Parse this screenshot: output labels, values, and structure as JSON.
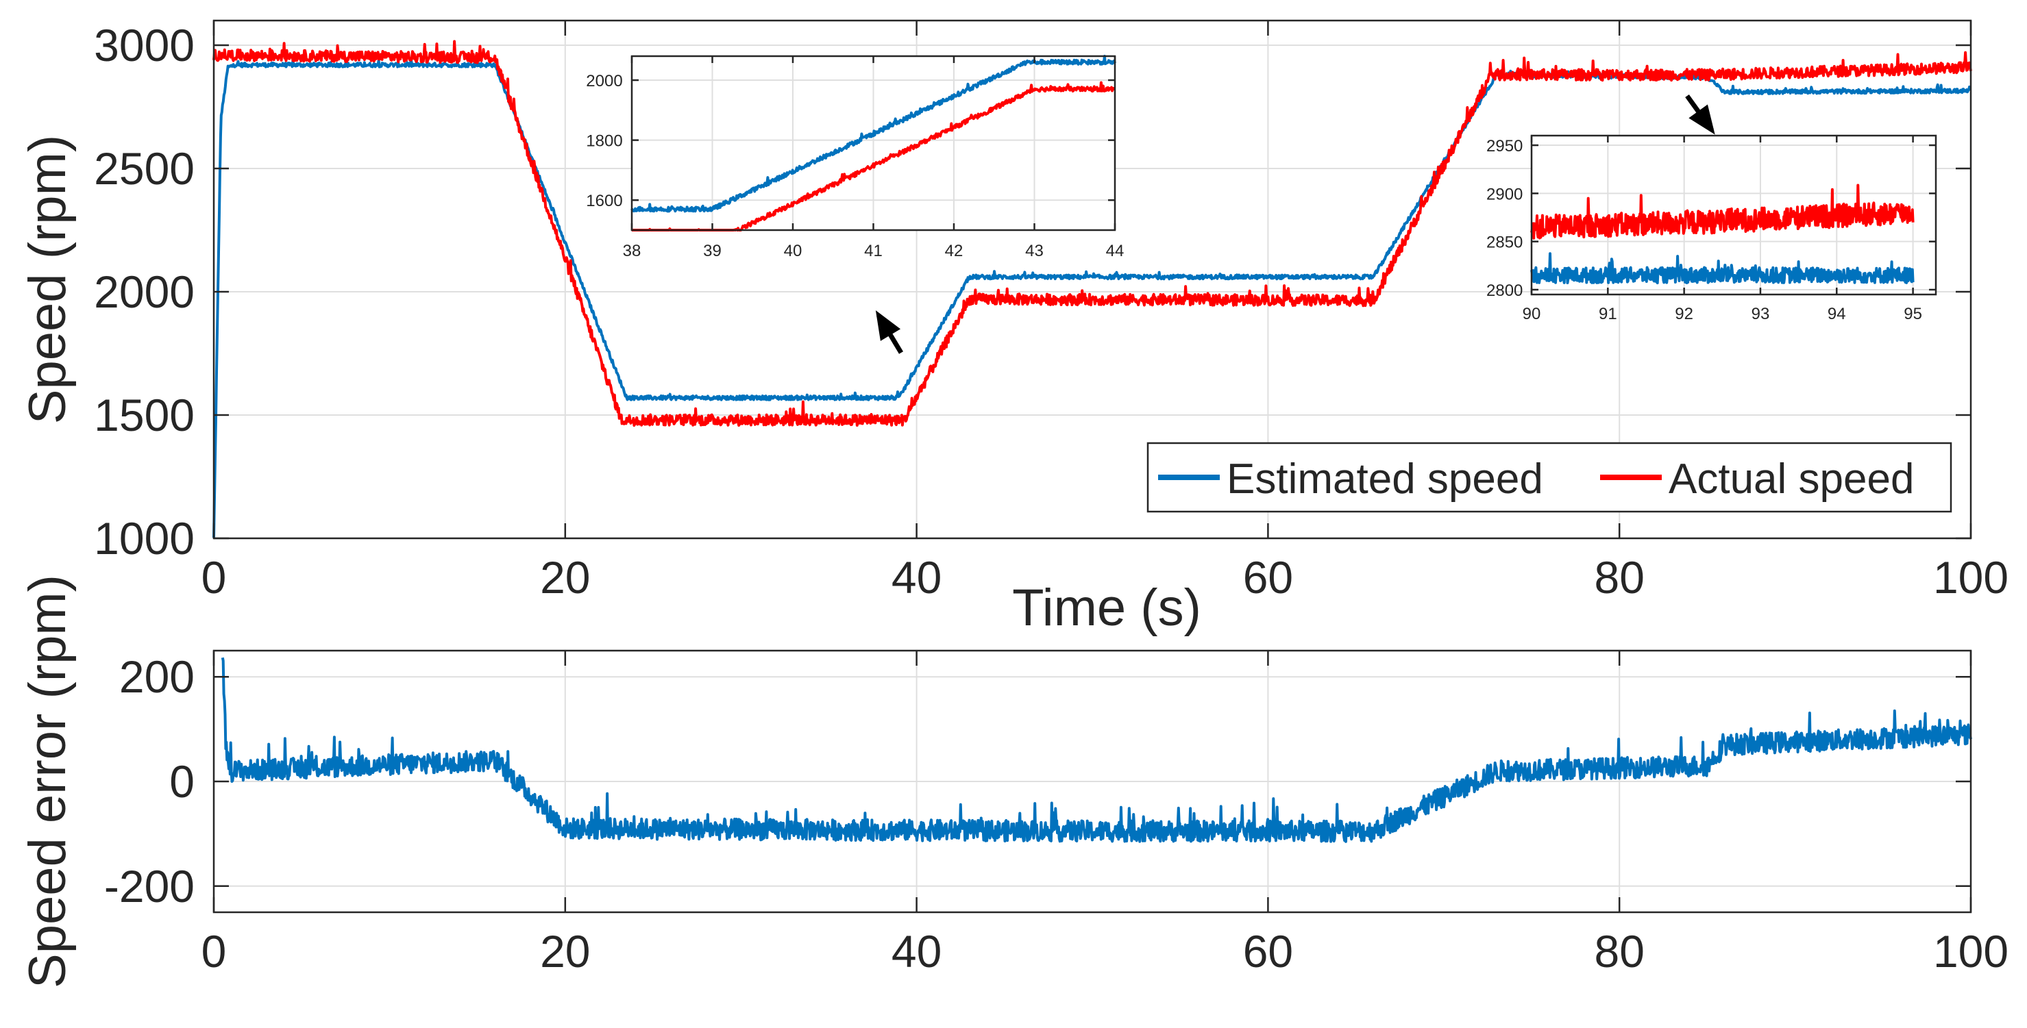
{
  "chart_data": [
    {
      "type": "line",
      "id": "speed",
      "xlabel": "Time (s)",
      "ylabel": "Speed (rpm)",
      "xlim": [
        0,
        100
      ],
      "ylim": [
        1000,
        3100
      ],
      "xticks": [
        0,
        20,
        40,
        60,
        80,
        100
      ],
      "yticks": [
        1000,
        1500,
        2000,
        2500,
        3000
      ],
      "grid": true,
      "legend": {
        "position": "bottom-right",
        "orientation": "horizontal"
      },
      "series": [
        {
          "name": "Estimated speed",
          "color": "#0072BD",
          "noise": 8,
          "x": [
            0,
            0.4,
            0.8,
            1.2,
            16,
            23.5,
            39,
            43,
            66,
            73,
            85,
            86,
            100
          ],
          "y": [
            1000,
            2700,
            2910,
            2920,
            2920,
            1570,
            1570,
            2060,
            2060,
            2880,
            2870,
            2810,
            2815
          ]
        },
        {
          "name": "Actual speed",
          "color": "#FF0000",
          "noise": 22,
          "x": [
            0,
            16,
            23.2,
            39.3,
            43,
            66,
            72.7,
            85,
            100
          ],
          "y": [
            2960,
            2950,
            1480,
            1480,
            1970,
            1965,
            2880,
            2880,
            2910
          ]
        }
      ],
      "insets": [
        {
          "id": "inset-left",
          "xlim": [
            38,
            44
          ],
          "ylim": [
            1500,
            2080
          ],
          "xticks": [
            38,
            39,
            40,
            41,
            42,
            43,
            44
          ],
          "yticks": [
            1600,
            1800,
            2000
          ],
          "grid": true,
          "series": [
            {
              "name": "Estimated speed",
              "color": "#0072BD",
              "noise": 7,
              "x": [
                38,
                39,
                42.9,
                44
              ],
              "y": [
                1570,
                1570,
                2060,
                2060
              ]
            },
            {
              "name": "Actual speed",
              "color": "#FF0000",
              "noise": 7,
              "x": [
                38,
                39.2,
                43,
                44
              ],
              "y": [
                1485,
                1485,
                1970,
                1970
              ]
            }
          ]
        },
        {
          "id": "inset-right",
          "xlim": [
            90,
            95.3
          ],
          "ylim": [
            2795,
            2960
          ],
          "xticks": [
            90,
            91,
            92,
            93,
            94,
            95
          ],
          "yticks": [
            2800,
            2850,
            2900,
            2950
          ],
          "grid": true,
          "series": [
            {
              "name": "Estimated speed",
              "color": "#0072BD",
              "noise": 8,
              "x": [
                90,
                95
              ],
              "y": [
                2815,
                2815
              ]
            },
            {
              "name": "Actual speed",
              "color": "#FF0000",
              "noise": 12,
              "x": [
                90,
                92.2,
                93.5,
                95
              ],
              "y": [
                2865,
                2870,
                2875,
                2880
              ]
            }
          ]
        }
      ]
    },
    {
      "type": "line",
      "id": "error",
      "xlabel": "",
      "ylabel": "Speed error (rpm)",
      "xlim": [
        0,
        100
      ],
      "ylim": [
        -250,
        250
      ],
      "xticks": [
        0,
        20,
        40,
        60,
        80,
        100
      ],
      "yticks": [
        -200,
        0,
        200
      ],
      "grid": true,
      "series": [
        {
          "name": "Speed error",
          "color": "#0072BD",
          "noise": 20,
          "x": [
            0.5,
            0.7,
            1,
            16,
            20,
            50,
            66,
            73,
            85,
            86,
            100
          ],
          "y": [
            250,
            60,
            20,
            40,
            -90,
            -95,
            -95,
            20,
            30,
            70,
            90
          ]
        }
      ]
    }
  ]
}
